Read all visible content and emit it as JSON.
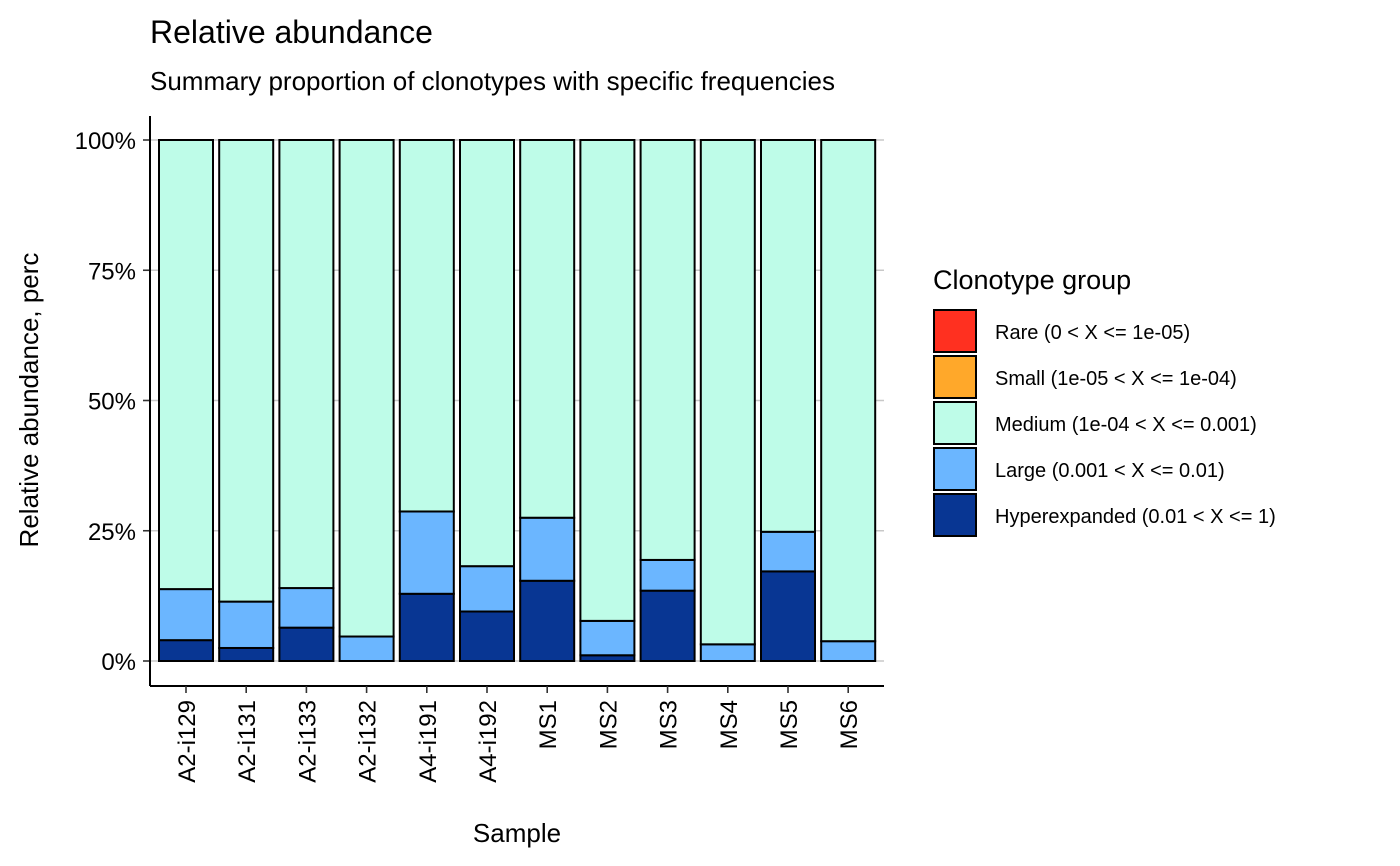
{
  "chart_data": {
    "type": "bar",
    "stacked": true,
    "title": "Relative abundance",
    "subtitle": "Summary proportion of clonotypes with specific frequencies",
    "xlabel": "Sample",
    "ylabel": "Relative abundance, perc",
    "ylim": [
      0,
      1
    ],
    "yticks": [
      0,
      0.25,
      0.5,
      0.75,
      1
    ],
    "ytick_labels": [
      "0%",
      "25%",
      "50%",
      "75%",
      "100%"
    ],
    "grid": false,
    "legend": {
      "title": "Clonotype group",
      "placement": "right"
    },
    "categories": [
      "A2-i129",
      "A2-i131",
      "A2-i133",
      "A2-i132",
      "A4-i191",
      "A4-i192",
      "MS1",
      "MS2",
      "MS3",
      "MS4",
      "MS5",
      "MS6"
    ],
    "series": [
      {
        "name": "Rare (0 < X <= 1e-05)",
        "color": "#FF3020",
        "values": [
          0,
          0,
          0,
          0,
          0,
          0,
          0,
          0,
          0,
          0,
          0,
          0
        ]
      },
      {
        "name": "Small (1e-05 < X <= 1e-04)",
        "color": "#FFA82A",
        "values": [
          0,
          0,
          0,
          0,
          0,
          0,
          0,
          0,
          0,
          0,
          0,
          0
        ]
      },
      {
        "name": "Medium (1e-04 < X <= 0.001)",
        "color": "#BEFCE8",
        "values": [
          0.862,
          0.886,
          0.86,
          0.953,
          0.713,
          0.818,
          0.725,
          0.923,
          0.806,
          0.968,
          0.752,
          0.962
        ]
      },
      {
        "name": "Large (0.001 < X <= 0.01)",
        "color": "#6BB6FF",
        "values": [
          0.098,
          0.089,
          0.076,
          0.047,
          0.158,
          0.087,
          0.121,
          0.066,
          0.059,
          0.032,
          0.076,
          0.038
        ]
      },
      {
        "name": "Hyperexpanded (0.01 < X <= 1)",
        "color": "#083693",
        "values": [
          0.04,
          0.025,
          0.064,
          0,
          0.129,
          0.095,
          0.154,
          0.011,
          0.135,
          0,
          0.172,
          0
        ]
      }
    ]
  }
}
